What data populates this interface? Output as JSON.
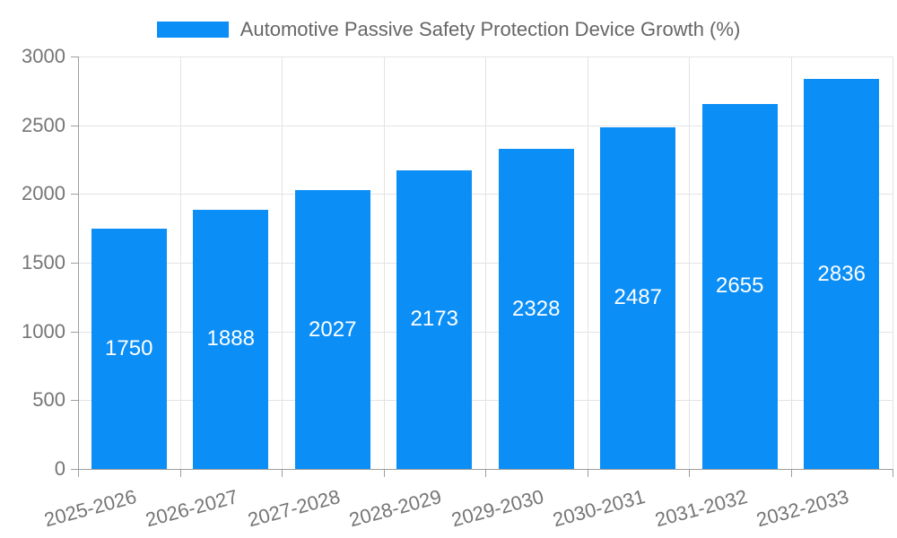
{
  "chart_data": {
    "type": "bar",
    "title": "Automotive Passive Safety Protection Device Growth (%)",
    "legend_position": "top-center",
    "categories": [
      "2025-2026",
      "2026-2027",
      "2027-2028",
      "2028-2029",
      "2029-2030",
      "2030-2031",
      "2031-2032",
      "2032-2033"
    ],
    "values": [
      1750,
      1888,
      2027,
      2173,
      2328,
      2487,
      2655,
      2836
    ],
    "xlabel": "",
    "ylabel": "",
    "ylim": [
      0,
      3000
    ],
    "yticks": [
      0,
      500,
      1000,
      1500,
      2000,
      2500,
      3000
    ],
    "grid": true,
    "bar_label_position": "inside-center",
    "x_tick_rotation_deg": -15,
    "colors": {
      "bar": "#0b8ef6",
      "bar_label": "#ffffff",
      "grid_line": "#e3e3e3",
      "axis_line": "#9e9e9e",
      "tick_label": "#757575",
      "legend_text": "#666666",
      "background": "#ffffff"
    }
  }
}
